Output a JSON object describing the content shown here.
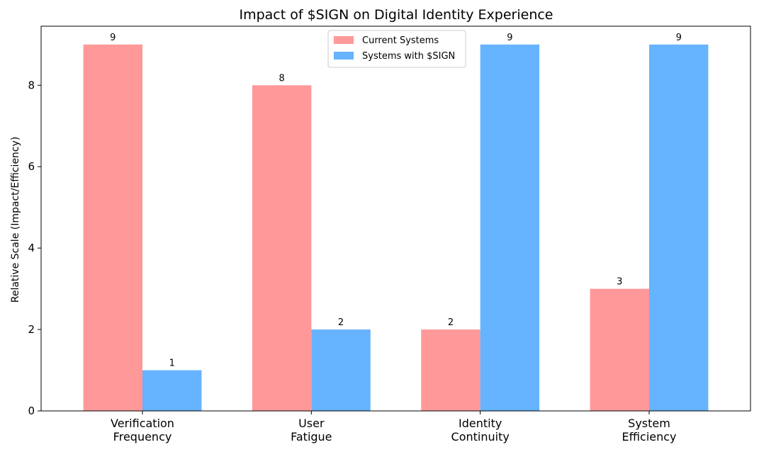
{
  "chart_data": {
    "type": "bar",
    "title": "Impact of $SIGN on Digital Identity Experience",
    "xlabel": "",
    "ylabel": "Relative Scale (Impact/Efficiency)",
    "categories": [
      [
        "Verification",
        "Frequency"
      ],
      [
        "User",
        "Fatigue"
      ],
      [
        "Identity",
        "Continuity"
      ],
      [
        "System",
        "Efficiency"
      ]
    ],
    "series": [
      {
        "name": "Current Systems",
        "values": [
          9,
          8,
          2,
          3
        ],
        "color": "#ff9999"
      },
      {
        "name": "Systems with $SIGN",
        "values": [
          1,
          2,
          9,
          9
        ],
        "color": "#66b3ff"
      }
    ],
    "ylim": [
      0,
      9.45
    ],
    "yticks": [
      0,
      2,
      4,
      6,
      8
    ],
    "grid": false,
    "legend_position": "top-center"
  }
}
